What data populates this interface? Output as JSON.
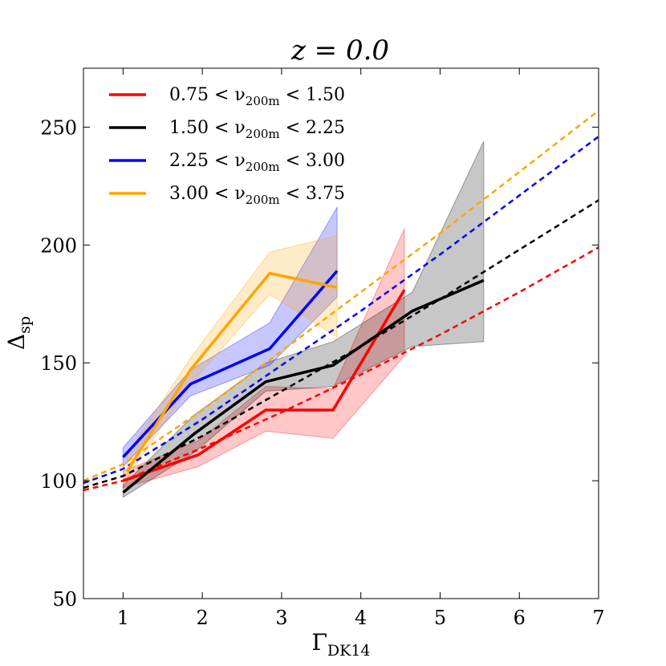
{
  "chart_data": {
    "type": "line",
    "title": "z = 0.0",
    "xlabel": "Γ_DK14",
    "ylabel": "Δ_sp",
    "xlim": [
      0.5,
      7
    ],
    "ylim": [
      50,
      275
    ],
    "xticks": [
      1,
      2,
      3,
      4,
      5,
      6,
      7
    ],
    "yticks": [
      50,
      100,
      150,
      200,
      250
    ],
    "legend_position": "top-left",
    "series": [
      {
        "name": "0.75 < ν_200m < 1.50",
        "label_main": "0.75 < ν",
        "label_sub": "200m",
        "label_tail": " < 1.50",
        "color": "#ff0000",
        "x": [
          1.0,
          1.95,
          2.8,
          3.65,
          4.55
        ],
        "y": [
          100,
          111,
          130,
          130,
          181
        ],
        "band_upper": [
          104,
          117,
          140,
          139,
          207
        ],
        "band_lower": [
          97,
          106,
          121,
          118,
          153
        ],
        "fit_x": [
          0.5,
          1.0,
          2.0,
          3.0,
          4.0,
          5.0,
          6.0,
          7.0
        ],
        "fit_y": [
          96,
          100,
          114,
          129,
          145,
          162,
          180,
          199
        ]
      },
      {
        "name": "1.50 < ν_200m < 2.25",
        "label_main": "1.50 < ν",
        "label_sub": "200m",
        "label_tail": " < 2.25",
        "color": "#000000",
        "x": [
          1.0,
          1.9,
          2.8,
          3.65,
          4.65,
          5.55
        ],
        "y": [
          95,
          120,
          142,
          149,
          172,
          185
        ],
        "band_upper": [
          98,
          128,
          150,
          159,
          180,
          244
        ],
        "band_lower": [
          93,
          112,
          138,
          140,
          157,
          159
        ],
        "fit_x": [
          0.5,
          1.0,
          2.0,
          3.0,
          4.0,
          5.0,
          6.0,
          7.0
        ],
        "fit_y": [
          97,
          102,
          119,
          138,
          157,
          177,
          198,
          219
        ]
      },
      {
        "name": "2.25 < ν_200m < 3.00",
        "label_main": "2.25 < ν",
        "label_sub": "200m",
        "label_tail": " < 3.00",
        "color": "#0000ff",
        "x": [
          1.0,
          1.85,
          2.85,
          3.7
        ],
        "y": [
          110,
          141,
          156,
          189
        ],
        "band_upper": [
          114,
          147,
          167,
          216
        ],
        "band_lower": [
          106,
          136,
          149,
          178
        ],
        "fit_x": [
          0.5,
          1.0,
          2.0,
          3.0,
          4.0,
          5.0,
          6.0,
          7.0
        ],
        "fit_y": [
          99,
          105,
          126,
          149,
          172,
          196,
          221,
          246
        ]
      },
      {
        "name": "3.00 < ν_200m < 3.75",
        "label_main": "3.00 < ν",
        "label_sub": "200m",
        "label_tail": " < 3.75",
        "color": "#ffa500",
        "x": [
          1.05,
          1.85,
          2.85,
          3.7
        ],
        "y": [
          104,
          147,
          188,
          182
        ],
        "band_upper": [
          111,
          152,
          197,
          204
        ],
        "band_lower": [
          101,
          141,
          179,
          161
        ],
        "fit_x": [
          0.5,
          1.0,
          2.0,
          3.0,
          4.0,
          5.0,
          6.0,
          7.0
        ],
        "fit_y": [
          100,
          107,
          130,
          155,
          180,
          205,
          231,
          257
        ]
      }
    ]
  }
}
